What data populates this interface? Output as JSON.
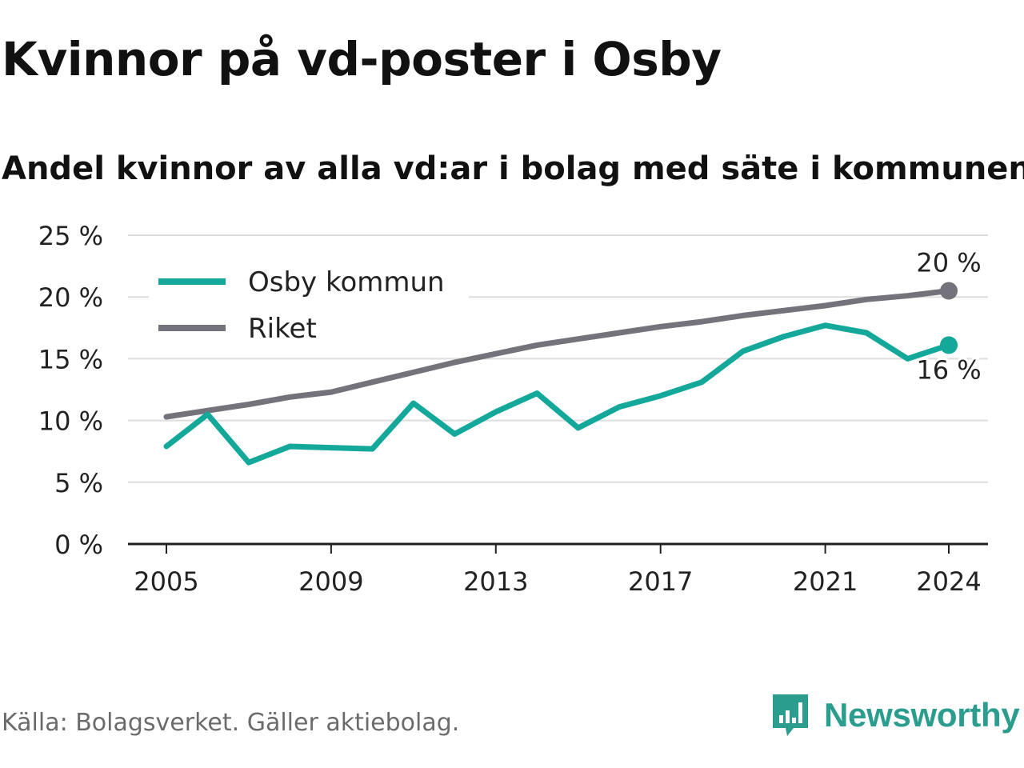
{
  "header": {
    "title": "Kvinnor på vd-poster i Osby",
    "subtitle": "Andel kvinnor av alla vd:ar i bolag med säte i kommunen"
  },
  "footer": {
    "source": "Källa: Bolagsverket. Gäller aktiebolag.",
    "brand": "Newsworthy",
    "brand_color": "#2a9d8f"
  },
  "chart_data": {
    "type": "line",
    "x": [
      2005,
      2006,
      2007,
      2008,
      2009,
      2010,
      2011,
      2012,
      2013,
      2014,
      2015,
      2016,
      2017,
      2018,
      2019,
      2020,
      2021,
      2022,
      2023,
      2024
    ],
    "xticks": [
      2005,
      2009,
      2013,
      2017,
      2021,
      2024
    ],
    "yticks": [
      0,
      5,
      10,
      15,
      20,
      25
    ],
    "ytick_labels": [
      "0 %",
      "5 %",
      "10 %",
      "15 %",
      "20 %",
      "25 %"
    ],
    "ylim": [
      0,
      25
    ],
    "grid": true,
    "legend_position": "top-left",
    "series": [
      {
        "name": "Osby kommun",
        "color": "#14a89a",
        "values": [
          7.9,
          10.5,
          6.6,
          7.9,
          7.8,
          7.7,
          11.4,
          8.9,
          10.7,
          12.2,
          9.4,
          11.1,
          12.0,
          13.1,
          15.6,
          16.8,
          17.7,
          17.1,
          15.0,
          16.1
        ],
        "end_label": "16 %"
      },
      {
        "name": "Riket",
        "color": "#74737b",
        "values": [
          10.3,
          10.8,
          11.3,
          11.9,
          12.3,
          13.1,
          13.9,
          14.7,
          15.4,
          16.1,
          16.6,
          17.1,
          17.6,
          18.0,
          18.5,
          18.9,
          19.3,
          19.8,
          20.1,
          20.5
        ],
        "end_label": "20 %"
      }
    ]
  }
}
